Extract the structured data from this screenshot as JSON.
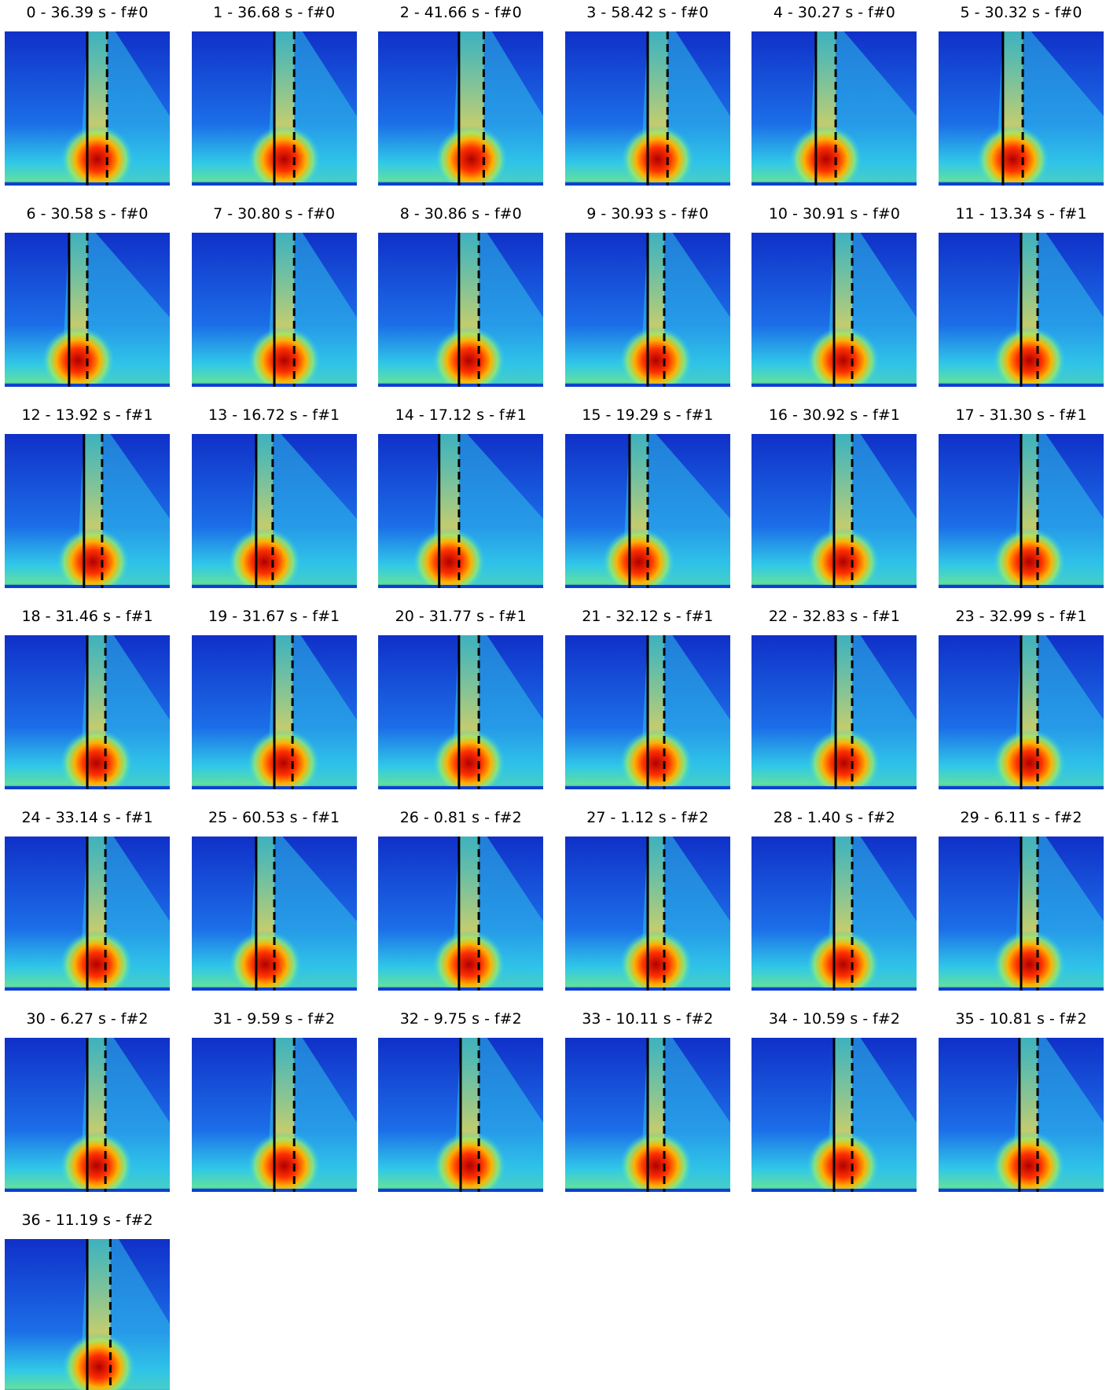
{
  "chart_data": [
    {
      "type": "spectrogram",
      "title": "0 - 36.39 s - f#0"
    },
    {
      "type": "spectrogram",
      "title": "1 - 36.68 s - f#0"
    },
    {
      "type": "spectrogram",
      "title": "2 - 41.66 s - f#0"
    },
    {
      "type": "spectrogram",
      "title": "3 - 58.42 s - f#0"
    },
    {
      "type": "spectrogram",
      "title": "4 - 30.27 s - f#0"
    },
    {
      "type": "spectrogram",
      "title": "5 - 30.32 s - f#0"
    },
    {
      "type": "spectrogram",
      "title": "6 - 30.58 s - f#0"
    },
    {
      "type": "spectrogram",
      "title": "7 - 30.80 s - f#0"
    },
    {
      "type": "spectrogram",
      "title": "8 - 30.86 s - f#0"
    },
    {
      "type": "spectrogram",
      "title": "9 - 30.93 s - f#0"
    },
    {
      "type": "spectrogram",
      "title": "10 - 30.91 s - f#0"
    },
    {
      "type": "spectrogram",
      "title": "11 - 13.34 s - f#1"
    },
    {
      "type": "spectrogram",
      "title": "12 - 13.92 s - f#1"
    },
    {
      "type": "spectrogram",
      "title": "13 - 16.72 s - f#1"
    },
    {
      "type": "spectrogram",
      "title": "14 - 17.12 s - f#1"
    },
    {
      "type": "spectrogram",
      "title": "15 - 19.29 s - f#1"
    },
    {
      "type": "spectrogram",
      "title": "16 - 30.92 s - f#1"
    },
    {
      "type": "spectrogram",
      "title": "17 - 31.30 s - f#1"
    },
    {
      "type": "spectrogram",
      "title": "18 - 31.46 s - f#1"
    },
    {
      "type": "spectrogram",
      "title": "19 - 31.67 s - f#1"
    },
    {
      "type": "spectrogram",
      "title": "20 - 31.77 s - f#1"
    },
    {
      "type": "spectrogram",
      "title": "21 - 32.12 s - f#1"
    },
    {
      "type": "spectrogram",
      "title": "22 - 32.83 s - f#1"
    },
    {
      "type": "spectrogram",
      "title": "23 - 32.99 s - f#1"
    },
    {
      "type": "spectrogram",
      "title": "24 - 33.14 s - f#1"
    },
    {
      "type": "spectrogram",
      "title": "25 - 60.53 s - f#1"
    },
    {
      "type": "spectrogram",
      "title": "26 - 0.81 s - f#2"
    },
    {
      "type": "spectrogram",
      "title": "27 - 1.12 s - f#2"
    },
    {
      "type": "spectrogram",
      "title": "28 - 1.40 s - f#2"
    },
    {
      "type": "spectrogram",
      "title": "29 - 6.11 s - f#2"
    },
    {
      "type": "spectrogram",
      "title": "30 - 6.27 s - f#2"
    },
    {
      "type": "spectrogram",
      "title": "31 - 9.59 s - f#2"
    },
    {
      "type": "spectrogram",
      "title": "32 - 9.75 s - f#2"
    },
    {
      "type": "spectrogram",
      "title": "33 - 10.11 s - f#2"
    },
    {
      "type": "spectrogram",
      "title": "34 - 10.59 s - f#2"
    },
    {
      "type": "spectrogram",
      "title": "35 - 10.81 s - f#2"
    },
    {
      "type": "spectrogram",
      "title": "36 - 11.19 s - f#2"
    }
  ]
}
